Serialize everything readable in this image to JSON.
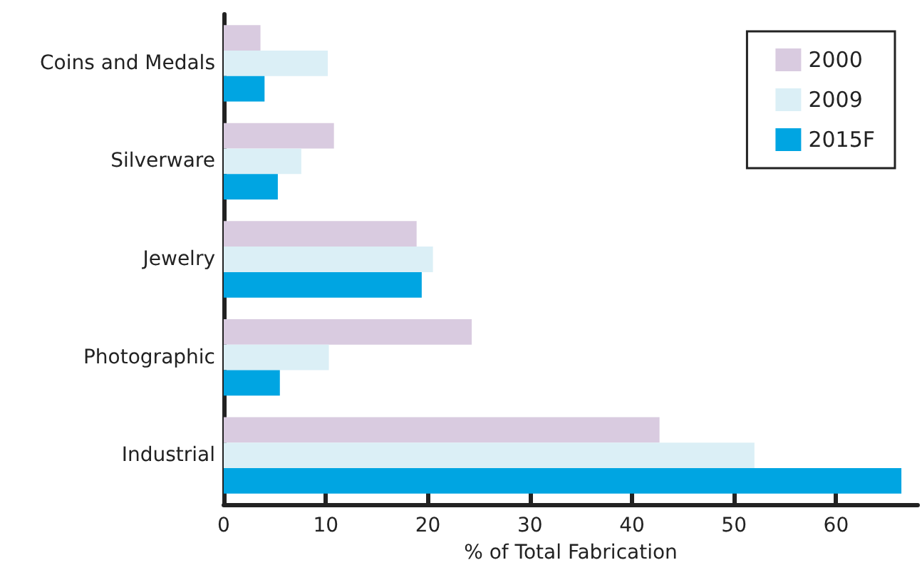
{
  "chart_data": {
    "type": "bar",
    "orientation": "horizontal",
    "xlabel": "% of Total Fabrication",
    "categories": [
      "Coins and Medals",
      "Silverware",
      "Jewelry",
      "Photographic",
      "Industrial"
    ],
    "series": [
      {
        "name": "2000",
        "color": "#d9cbe0",
        "values": [
          3.6,
          10.8,
          18.9,
          24.3,
          42.7
        ]
      },
      {
        "name": "2009",
        "color": "#dbeff6",
        "values": [
          10.2,
          7.6,
          20.5,
          10.3,
          52.0
        ]
      },
      {
        "name": "2015F",
        "color": "#00a5e2",
        "values": [
          4.0,
          5.3,
          19.4,
          5.5,
          66.4
        ]
      }
    ],
    "xlim": [
      0,
      68
    ],
    "xticks": [
      0,
      10,
      20,
      30,
      40,
      50,
      60
    ],
    "grid": false,
    "legend": "top right"
  }
}
